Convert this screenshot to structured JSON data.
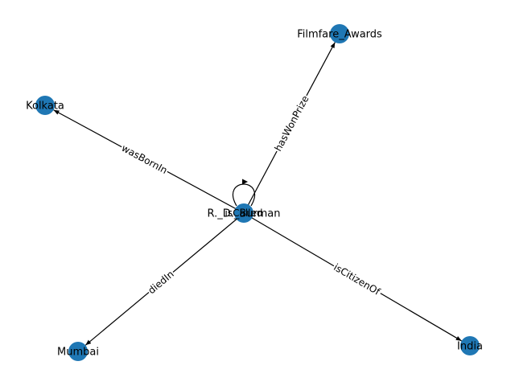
{
  "colors": {
    "node": "#1f77b4",
    "edge": "#000000",
    "background": "#ffffff",
    "label_bg": "#ffffff"
  },
  "graph": {
    "nodes": [
      {
        "id": "R._D._Burman",
        "label": "R._D._Burman"
      },
      {
        "id": "Filmfare_Awards",
        "label": "Filmfare_Awards"
      },
      {
        "id": "Kolkata",
        "label": "Kolkata"
      },
      {
        "id": "Mumbai",
        "label": "Mumbai"
      },
      {
        "id": "India",
        "label": "India"
      }
    ],
    "edges": [
      {
        "source": "R._D._Burman",
        "target": "Filmfare_Awards",
        "label": "hasWonPrize"
      },
      {
        "source": "R._D._Burman",
        "target": "Kolkata",
        "label": "wasBornIn"
      },
      {
        "source": "R._D._Burman",
        "target": "Mumbai",
        "label": "diedIn"
      },
      {
        "source": "R._D._Burman",
        "target": "India",
        "label": "isCitizenOf"
      },
      {
        "source": "R._D._Burman",
        "target": "R._D._Burman",
        "label": "isCalled"
      }
    ]
  }
}
